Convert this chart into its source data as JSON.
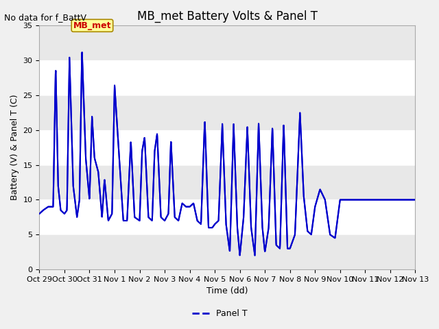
{
  "title": "MB_met Battery Volts & Panel T",
  "no_data_label": "No data for f_BattV",
  "ylabel": "Battery (V) & Panel T (C)",
  "xlabel": "Time (dd)",
  "legend_label": "Panel T",
  "legend_line_color": "#0000cc",
  "line_color": "#0000cc",
  "background_color": "#f0f0f0",
  "plot_bg_color": "#ffffff",
  "ylim": [
    0,
    35
  ],
  "yticks": [
    0,
    5,
    10,
    15,
    20,
    25,
    30,
    35
  ],
  "x_tick_labels": [
    "Oct 29",
    "Oct 30",
    "Oct 31",
    "Nov 1",
    "Nov 2",
    "Nov 3",
    "Nov 4",
    "Nov 5",
    "Nov 6",
    "Nov 7",
    "Nov 8",
    "Nov 9",
    "Nov 10",
    "Nov 11",
    "Nov 12",
    "Nov 13"
  ],
  "mb_met_label": "MB_met",
  "mb_met_box_color": "#ffff99",
  "mb_met_text_color": "#cc0000",
  "title_fontsize": 12,
  "label_fontsize": 9,
  "tick_fontsize": 8,
  "note_fontsize": 9,
  "linewidth": 1.5
}
